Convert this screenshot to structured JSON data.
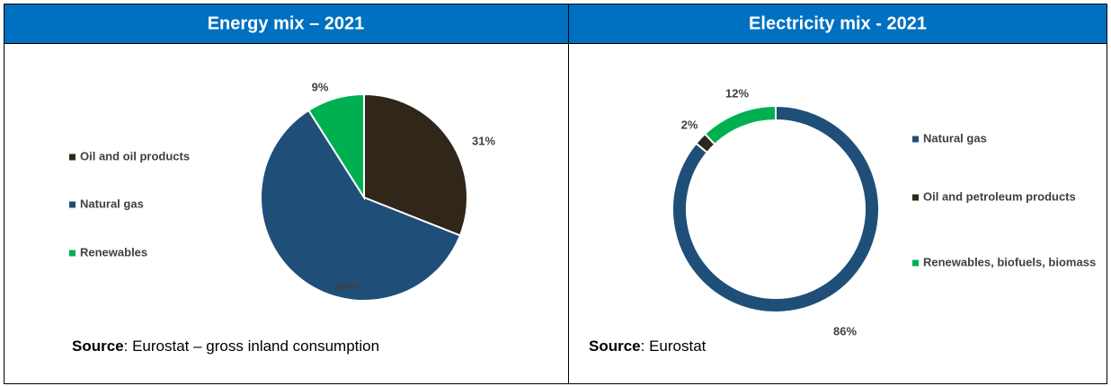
{
  "chart_data": [
    {
      "type": "pie",
      "title": "Energy mix – 2021",
      "categories": [
        "Oil and oil products",
        "Natural gas",
        "Renewables"
      ],
      "values": [
        31,
        60,
        9
      ],
      "value_labels": [
        "31%",
        "60%",
        "9%"
      ],
      "colors": [
        "#30261a",
        "#1f4e79",
        "#00b050"
      ],
      "source_label": "Source",
      "source_text": ": Eurostat – gross inland consumption"
    },
    {
      "type": "donut",
      "title": "Electricity mix - 2021",
      "categories": [
        "Natural gas",
        "Oil and petroleum products",
        "Renewables, biofuels, biomass"
      ],
      "values": [
        86,
        2,
        12
      ],
      "value_labels": [
        "86%",
        "2%",
        "12%"
      ],
      "colors": [
        "#1f4e79",
        "#30261a",
        "#00b050"
      ],
      "source_label": "Source",
      "source_text": ": Eurostat"
    }
  ]
}
